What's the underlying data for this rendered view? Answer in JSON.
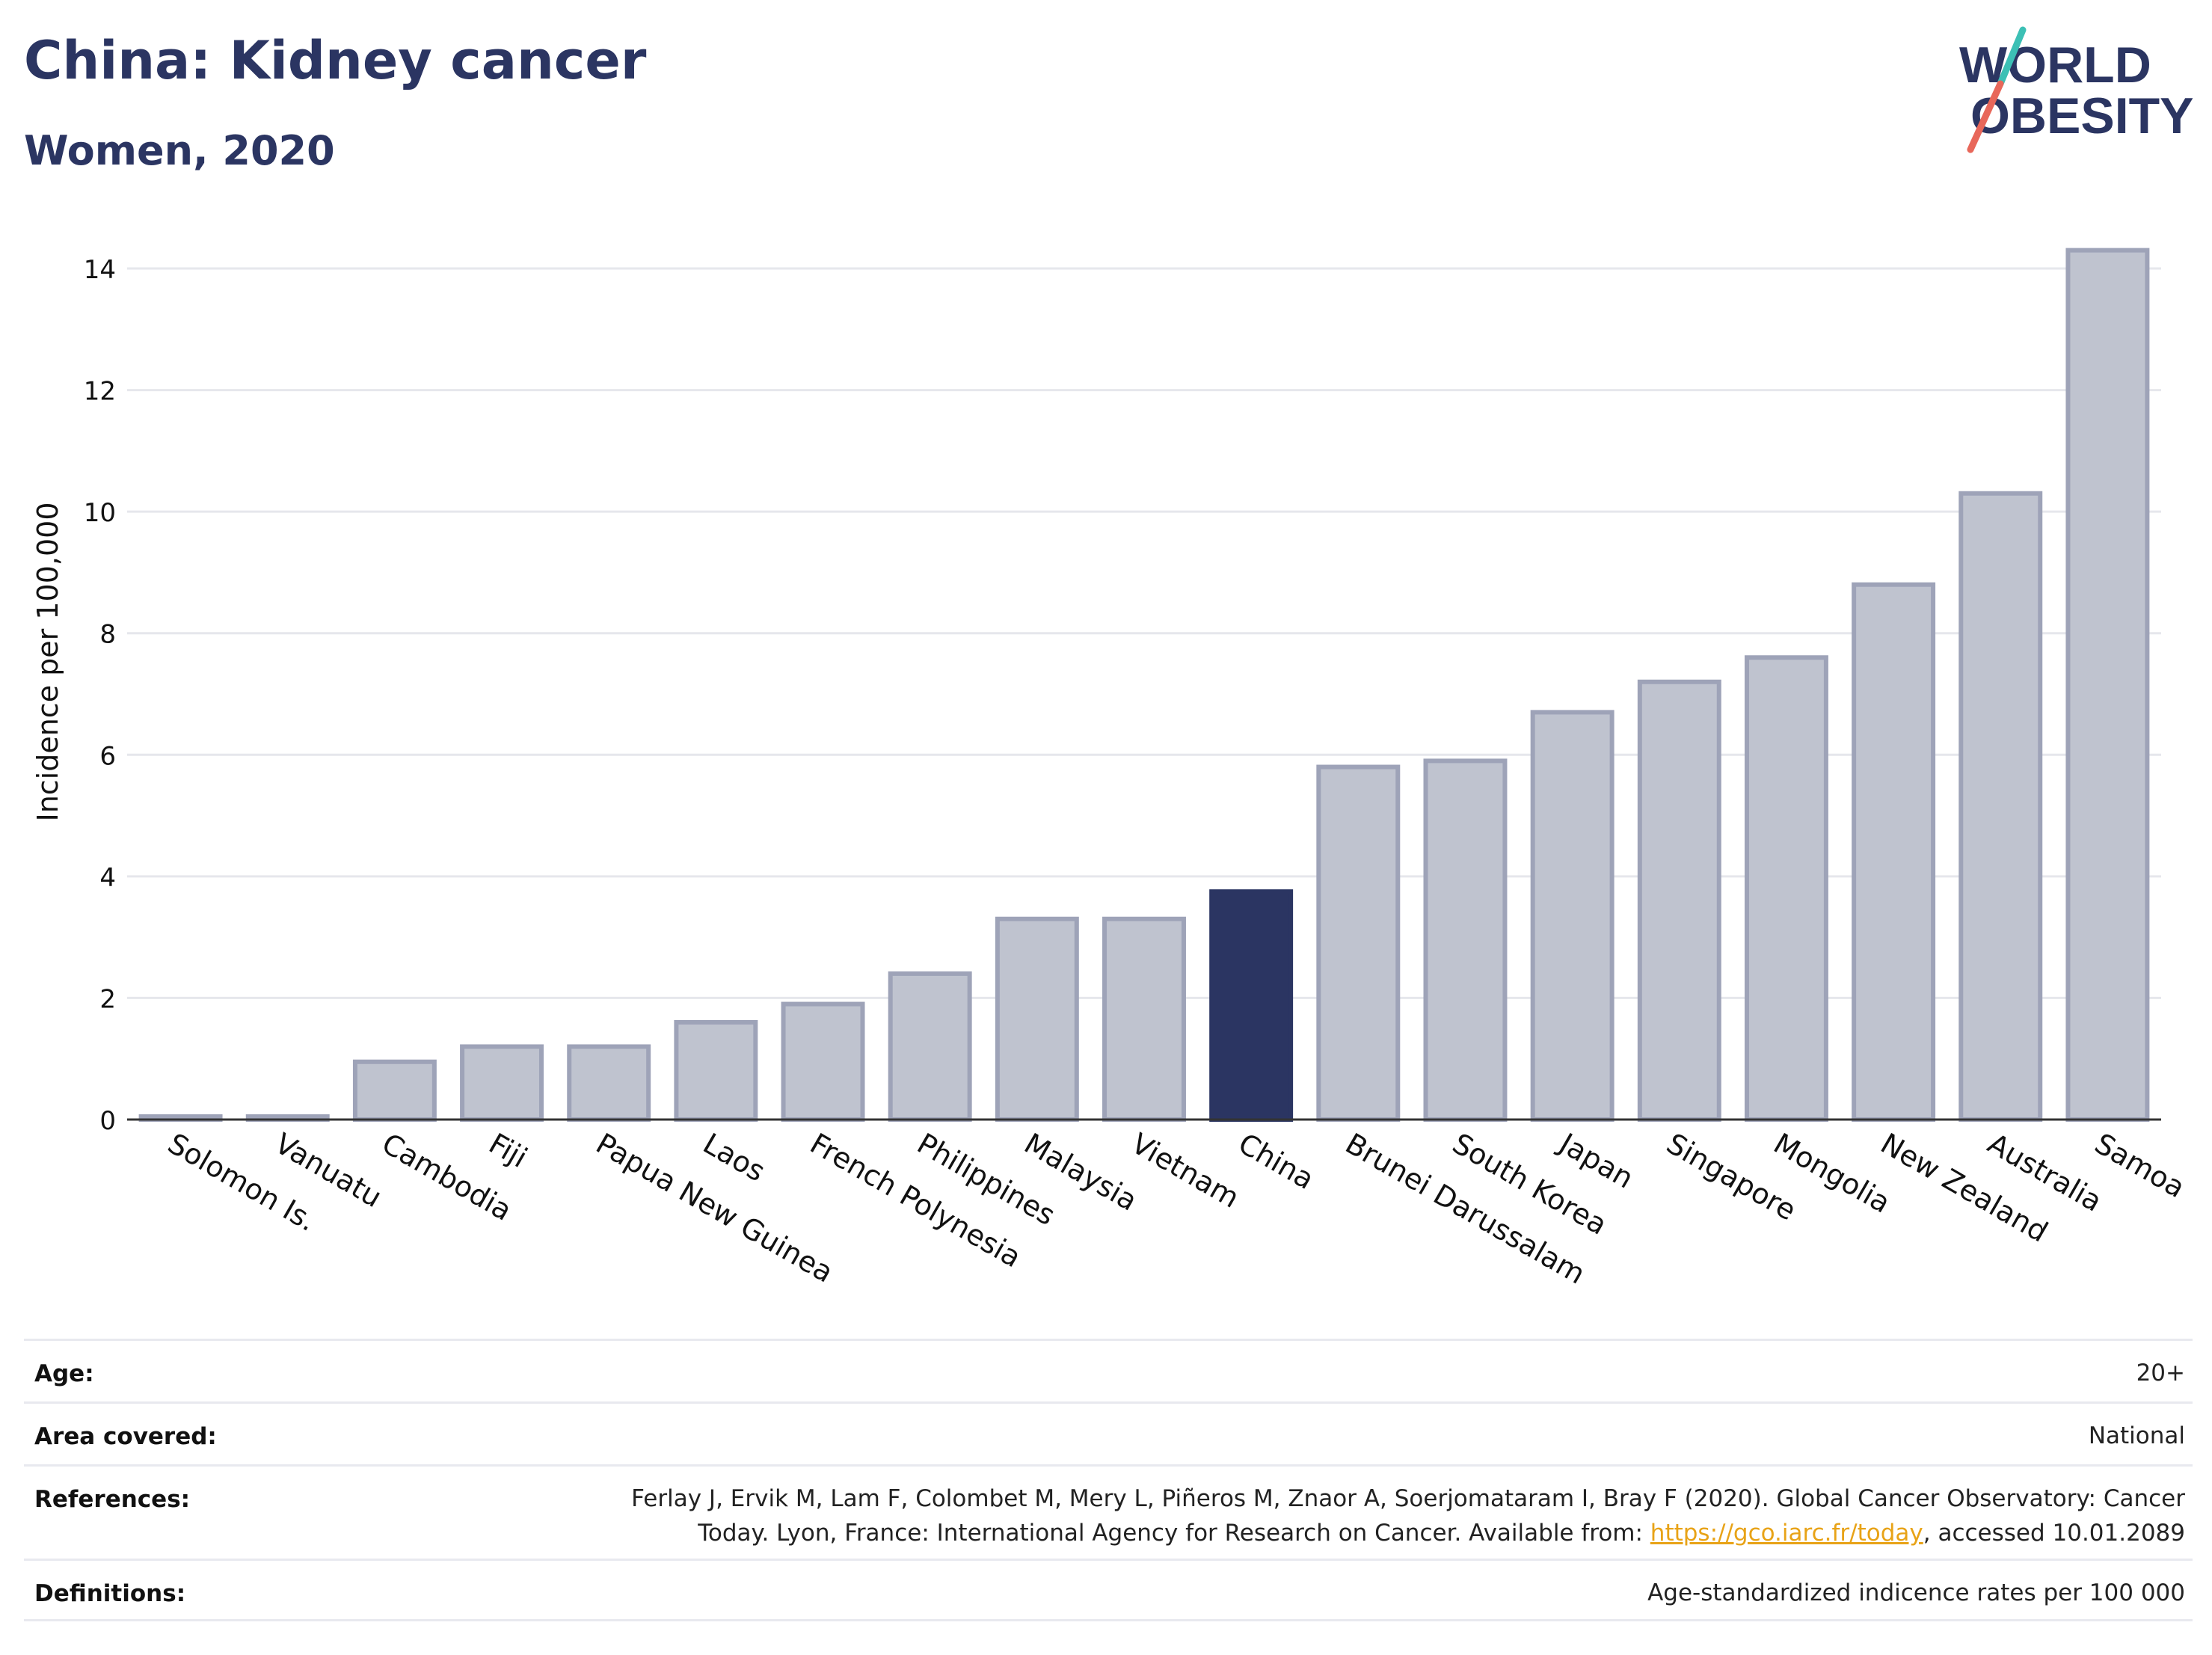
{
  "header": {
    "title": "China: Kidney cancer",
    "subtitle": "Women, 2020"
  },
  "logo": {
    "line1": "WORLD",
    "line2": "OBESITY",
    "colors": {
      "text": "#2b3562",
      "slash_teal": "#3cc0b5",
      "slash_red": "#e8675a"
    }
  },
  "chart_data": {
    "type": "bar",
    "title": "China: Kidney cancer",
    "subtitle": "Women, 2020",
    "xlabel": "",
    "ylabel": "Incidence per 100,000",
    "ylim": [
      0,
      15
    ],
    "yticks": [
      0,
      2,
      4,
      6,
      8,
      10,
      12,
      14
    ],
    "grid": true,
    "highlight": "China",
    "colors": {
      "default": "#bfc3cf",
      "default_stroke": "#9ea3b8",
      "highlight": "#2b3562"
    },
    "categories": [
      "Solomon Is.",
      "Vanuatu",
      "Cambodia",
      "Fiji",
      "Papua New Guinea",
      "Laos",
      "French Polynesia",
      "Philippines",
      "Malaysia",
      "Vietnam",
      "China",
      "Brunei Darussalam",
      "South Korea",
      "Japan",
      "Singapore",
      "Mongolia",
      "New Zealand",
      "Australia",
      "Samoa"
    ],
    "values": [
      0.05,
      0.05,
      0.95,
      1.2,
      1.2,
      1.6,
      1.9,
      2.4,
      3.3,
      3.3,
      3.75,
      5.8,
      5.9,
      6.7,
      7.2,
      7.6,
      8.8,
      10.3,
      14.3
    ]
  },
  "meta": {
    "age_label": "Age:",
    "age_value": "20+",
    "area_label": "Area covered:",
    "area_value": "National",
    "references_label": "References:",
    "references_line1": "Ferlay J, Ervik M, Lam F, Colombet M, Mery L, Piñeros M, Znaor A, Soerjomataram I, Bray F (2020). Global Cancer Observatory: Cancer",
    "references_line2_pre": "Today. Lyon, France: International Agency for Research on Cancer. Available from: ",
    "references_link": "https://gco.iarc.fr/today",
    "references_line2_post": ", accessed 10.01.2089",
    "definitions_label": "Definitions:",
    "definitions_value": "Age-standardized indicence rates per 100 000"
  }
}
